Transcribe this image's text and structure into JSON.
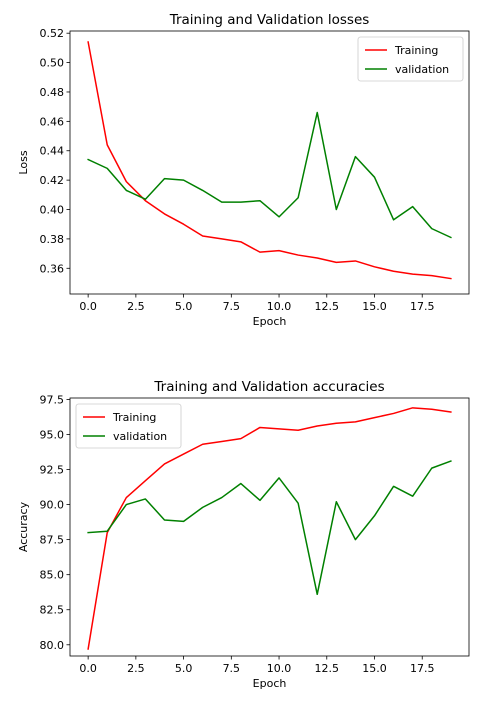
{
  "chart_data": [
    {
      "type": "line",
      "title": "Training and Validation losses",
      "xlabel": "Epoch",
      "ylabel": "Loss",
      "x": [
        0,
        1,
        2,
        3,
        4,
        5,
        6,
        7,
        8,
        9,
        10,
        11,
        12,
        13,
        14,
        15,
        16,
        17,
        18,
        19
      ],
      "xlim": [
        -0.95,
        19.95
      ],
      "ylim": [
        0.3425,
        0.5215
      ],
      "xticks": [
        0,
        2.5,
        5,
        7.5,
        10,
        12.5,
        15,
        17.5
      ],
      "xtick_labels": [
        "0.0",
        "2.5",
        "5.0",
        "7.5",
        "10.0",
        "12.5",
        "15.0",
        "17.5"
      ],
      "yticks": [
        0.36,
        0.38,
        0.4,
        0.42,
        0.44,
        0.46,
        0.48,
        0.5,
        0.52
      ],
      "ytick_labels": [
        "0.36",
        "0.38",
        "0.40",
        "0.42",
        "0.44",
        "0.46",
        "0.48",
        "0.50",
        "0.52"
      ],
      "legend_position": "top-right",
      "grid": false,
      "series": [
        {
          "name": "Training",
          "color": "#ff0000",
          "values": [
            0.514,
            0.444,
            0.419,
            0.406,
            0.397,
            0.39,
            0.382,
            0.38,
            0.378,
            0.371,
            0.372,
            0.369,
            0.367,
            0.364,
            0.365,
            0.361,
            0.358,
            0.356,
            0.355,
            0.353
          ]
        },
        {
          "name": "validation",
          "color": "#008000",
          "values": [
            0.434,
            0.428,
            0.413,
            0.407,
            0.421,
            0.42,
            0.413,
            0.405,
            0.405,
            0.406,
            0.395,
            0.408,
            0.466,
            0.4,
            0.436,
            0.422,
            0.393,
            0.402,
            0.387,
            0.381
          ]
        }
      ]
    },
    {
      "type": "line",
      "title": "Training and Validation accuracies",
      "xlabel": "Epoch",
      "ylabel": "Accuracy",
      "x": [
        0,
        1,
        2,
        3,
        4,
        5,
        6,
        7,
        8,
        9,
        10,
        11,
        12,
        13,
        14,
        15,
        16,
        17,
        18,
        19
      ],
      "xlim": [
        -0.95,
        19.95
      ],
      "ylim": [
        79.2,
        97.6
      ],
      "xticks": [
        0,
        2.5,
        5,
        7.5,
        10,
        12.5,
        15,
        17.5
      ],
      "xtick_labels": [
        "0.0",
        "2.5",
        "5.0",
        "7.5",
        "10.0",
        "12.5",
        "15.0",
        "17.5"
      ],
      "yticks": [
        80.0,
        82.5,
        85.0,
        87.5,
        90.0,
        92.5,
        95.0,
        97.5
      ],
      "ytick_labels": [
        "80.0",
        "82.5",
        "85.0",
        "87.5",
        "90.0",
        "92.5",
        "95.0",
        "97.5"
      ],
      "legend_position": "top-left",
      "grid": false,
      "series": [
        {
          "name": "Training",
          "color": "#ff0000",
          "values": [
            79.7,
            88.0,
            90.5,
            91.7,
            92.9,
            93.6,
            94.3,
            94.5,
            94.7,
            95.5,
            95.4,
            95.3,
            95.6,
            95.8,
            95.9,
            96.2,
            96.5,
            96.9,
            96.8,
            96.6
          ]
        },
        {
          "name": "validation",
          "color": "#008000",
          "values": [
            88.0,
            88.1,
            90.0,
            90.4,
            88.9,
            88.8,
            89.8,
            90.5,
            91.5,
            90.3,
            91.9,
            90.1,
            83.6,
            90.2,
            87.5,
            89.2,
            91.3,
            90.6,
            92.6,
            93.1
          ]
        }
      ]
    }
  ]
}
